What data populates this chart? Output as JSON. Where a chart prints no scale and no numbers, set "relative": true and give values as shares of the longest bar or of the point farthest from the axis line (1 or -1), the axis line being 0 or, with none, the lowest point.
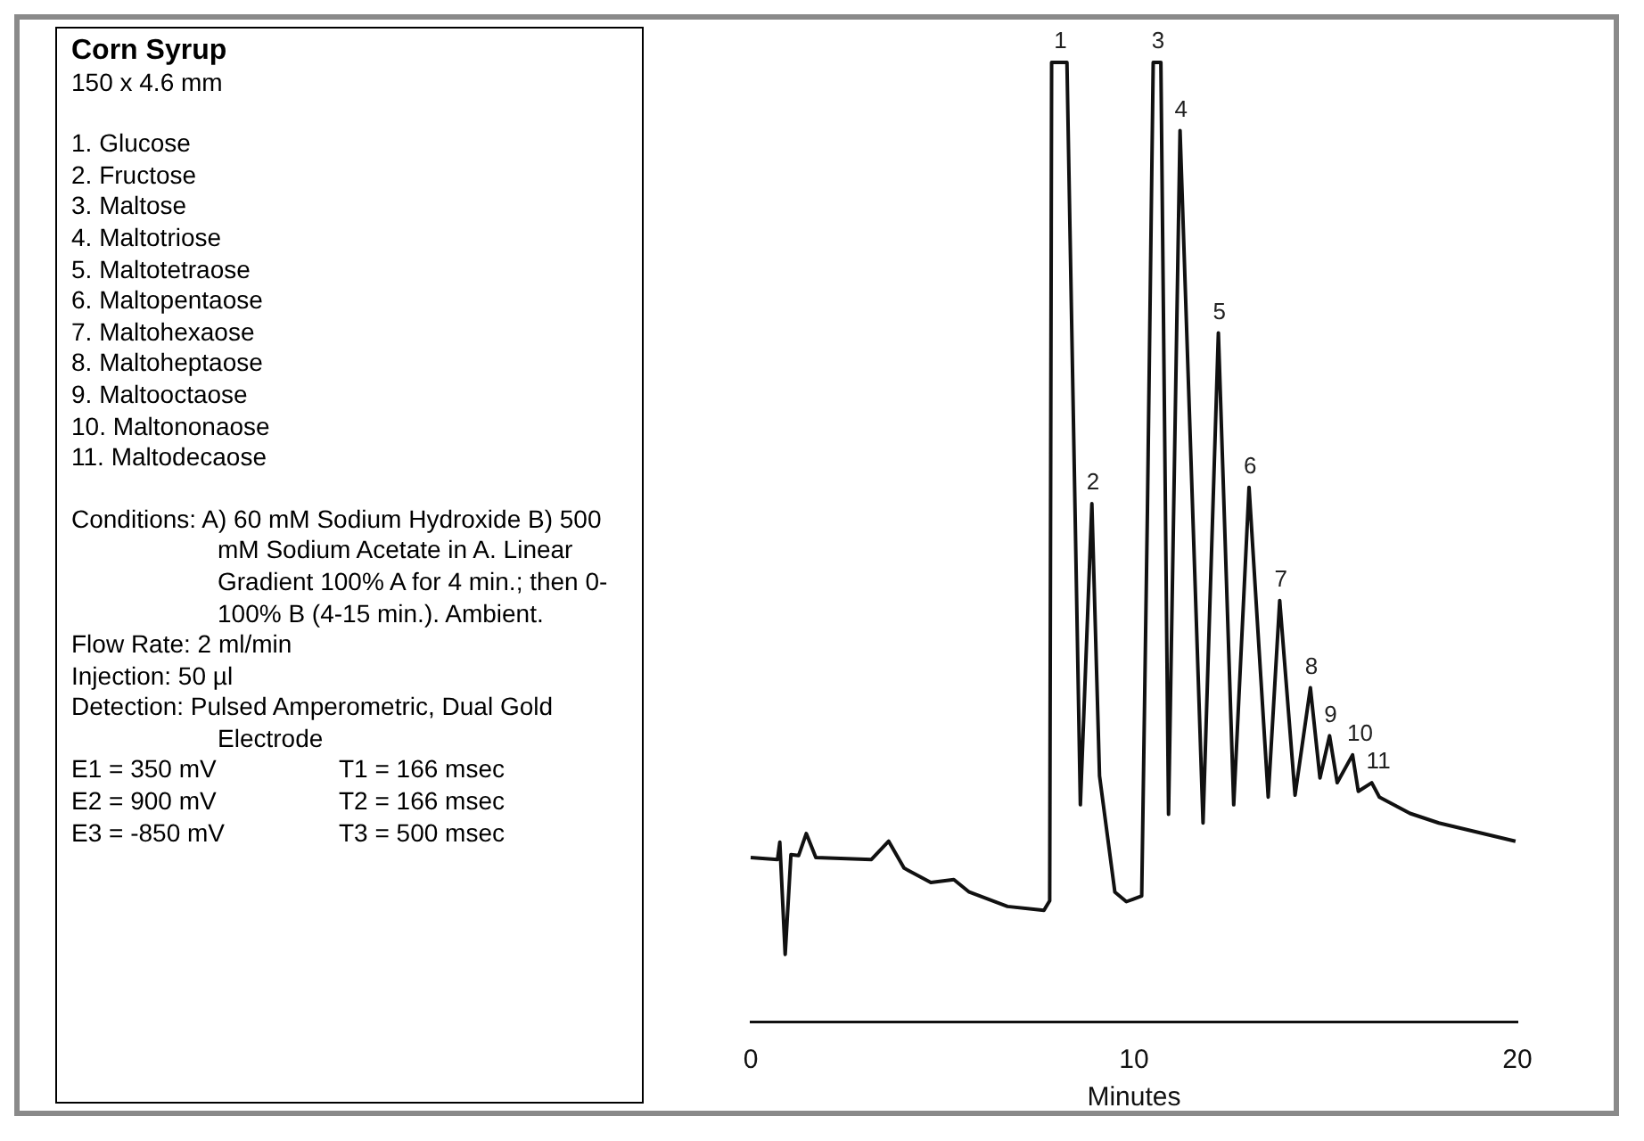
{
  "chart_data": [
    {
      "type": "other",
      "title": "Corn Syrup",
      "subtitle": "150 x 4.6 mm",
      "annotations": [
        "1. Glucose",
        "2. Fructose",
        "3. Maltose",
        "4. Maltotriose",
        "5. Maltotetraose",
        "6. Maltopentaose",
        "7. Maltohexaose",
        "8. Maltoheptaose",
        "9. Maltooctaose",
        "10. Maltononaose",
        "11. Maltodecaose",
        "Conditions: A) 60 mM Sodium Hydroxide B) 500 mM Sodium Acetate in A. Linear Gradient 100% A for 4 min.; then 0-100% B (4-15 min.). Ambient.",
        "Flow Rate: 2 ml/min",
        "Injection: 50 µl",
        "Detection: Pulsed Amperometric, Dual Gold Electrode",
        "E1 = 350 mV",
        "T1 = 166 msec",
        "E2 = 900 mV",
        "T2 = 166 msec",
        "E3 = -850 mV",
        "T3 = 500 msec"
      ]
    },
    {
      "type": "line",
      "relative": true,
      "xlabel": "Minutes",
      "xlim": [
        0,
        20
      ],
      "xticks": [
        0,
        10,
        20
      ],
      "tick_labels": "x",
      "marker": "none",
      "series": [
        {
          "color": "#111111",
          "x": [
            0,
            0.7,
            0.76,
            0.9,
            1.05,
            1.25,
            1.45,
            1.7,
            3.15,
            3.6,
            4.0,
            4.7,
            5.3,
            5.7,
            6.7,
            7.65,
            7.8,
            7.85,
            8.25,
            8.6,
            8.9,
            9.1,
            9.5,
            9.8,
            10.2,
            10.35,
            10.5,
            10.7,
            10.9,
            11.2,
            11.8,
            12.2,
            12.6,
            13.0,
            13.5,
            13.8,
            14.2,
            14.6,
            14.85,
            15.1,
            15.3,
            15.7,
            15.85,
            16.2,
            16.4,
            17.2,
            17.95,
            19.95
          ],
          "values": [
            0.171,
            0.169,
            0.187,
            0.07,
            0.174,
            0.173,
            0.196,
            0.171,
            0.169,
            0.188,
            0.16,
            0.145,
            0.148,
            0.135,
            0.12,
            0.116,
            0.126,
            1,
            1,
            0.226,
            0.54,
            0.256,
            0.135,
            0.125,
            0.131,
            0.535,
            1,
            1,
            0.216,
            0.929,
            0.207,
            0.718,
            0.226,
            0.557,
            0.234,
            0.439,
            0.236,
            0.348,
            0.254,
            0.298,
            0.249,
            0.278,
            0.24,
            0.249,
            0.234,
            0.217,
            0.207,
            0.188
          ]
        }
      ],
      "annotations": [
        {
          "text": "1",
          "x": 8.05,
          "y": 1
        },
        {
          "text": "2",
          "x": 8.9,
          "y": 0.54
        },
        {
          "text": "3",
          "x": 10.6,
          "y": 1
        },
        {
          "text": "4",
          "x": 11.2,
          "y": 0.929
        },
        {
          "text": "5",
          "x": 12.2,
          "y": 0.718
        },
        {
          "text": "6",
          "x": 13.0,
          "y": 0.557
        },
        {
          "text": "7",
          "x": 13.8,
          "y": 0.439
        },
        {
          "text": "8",
          "x": 14.6,
          "y": 0.348
        },
        {
          "text": "9",
          "x": 15.1,
          "y": 0.298
        },
        {
          "text": "10",
          "x": 15.7,
          "y": 0.278
        },
        {
          "text": "11",
          "x": 16.2,
          "y": 0.249
        }
      ]
    }
  ]
}
